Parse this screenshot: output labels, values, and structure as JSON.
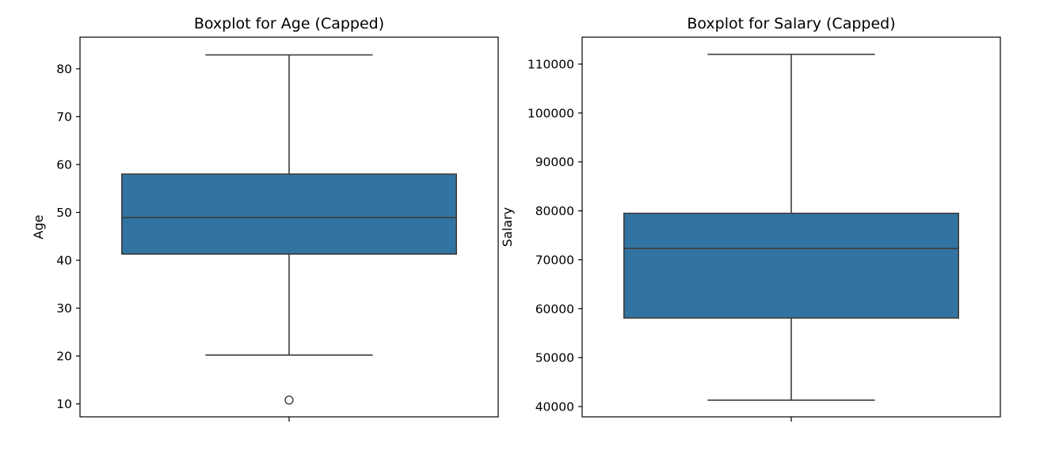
{
  "chart_data": [
    {
      "type": "box",
      "title": "Boxplot for Age (Capped)",
      "xlabel": "",
      "ylabel": "Age",
      "ylim": [
        7.3,
        86.6
      ],
      "yticks": [
        10,
        20,
        30,
        40,
        50,
        60,
        70,
        80
      ],
      "grid": false,
      "box": {
        "whisker_low": 20.2,
        "q1": 41.3,
        "median": 48.9,
        "q3": 58.0,
        "whisker_high": 82.9,
        "outliers": [
          10.8
        ]
      },
      "box_color": "#3274a1",
      "line_color": "#3d3d3d"
    },
    {
      "type": "box",
      "title": "Boxplot for Salary (Capped)",
      "xlabel": "",
      "ylabel": "Salary",
      "ylim": [
        37900,
        115500
      ],
      "yticks": [
        40000,
        50000,
        60000,
        70000,
        80000,
        90000,
        100000,
        110000
      ],
      "grid": false,
      "box": {
        "whisker_low": 41300,
        "q1": 58100,
        "median": 72300,
        "q3": 79500,
        "whisker_high": 112000,
        "outliers": []
      },
      "box_color": "#3274a1",
      "line_color": "#3d3d3d"
    }
  ]
}
